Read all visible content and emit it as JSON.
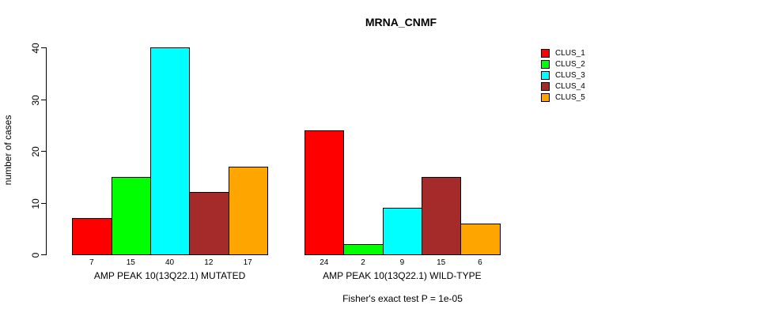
{
  "chart_data": {
    "type": "bar",
    "title": "MRNA_CNMF",
    "ylabel": "number of cases",
    "ylim": [
      0,
      40
    ],
    "yticks": [
      0,
      10,
      20,
      30,
      40
    ],
    "grid": false,
    "legend_position": "right",
    "categories": [
      "AMP PEAK 10(13Q22.1) MUTATED",
      "AMP PEAK 10(13Q22.1) WILD-TYPE"
    ],
    "series": [
      {
        "name": "CLUS_1",
        "color": "#FF0000",
        "values": [
          7,
          24
        ]
      },
      {
        "name": "CLUS_2",
        "color": "#00FF00",
        "values": [
          15,
          2
        ]
      },
      {
        "name": "CLUS_3",
        "color": "#00FFFF",
        "values": [
          40,
          9
        ]
      },
      {
        "name": "CLUS_4",
        "color": "#A52A2A",
        "values": [
          12,
          15
        ]
      },
      {
        "name": "CLUS_5",
        "color": "#FFA500",
        "values": [
          17,
          6
        ]
      }
    ],
    "bar_value_labels_shown": true,
    "annotation": "Fisher's exact test P = 1e-05"
  }
}
